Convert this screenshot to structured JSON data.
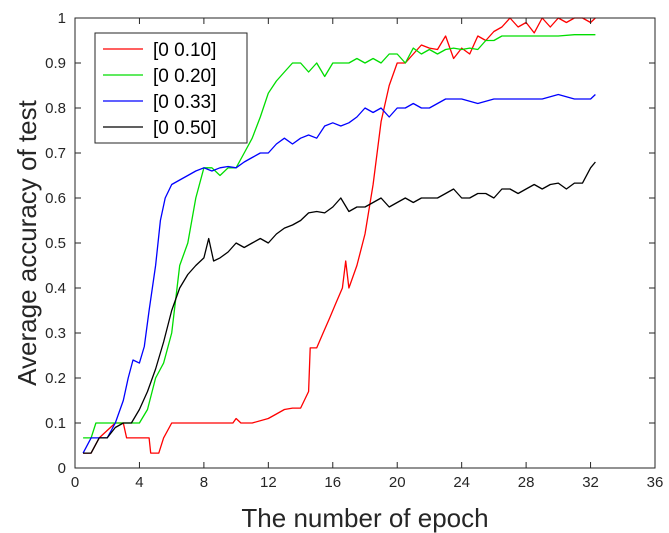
{
  "chart_data": {
    "type": "line",
    "title": "",
    "xlabel": "The number of epoch",
    "ylabel": "Average accuracy of test",
    "xlim": [
      0,
      36
    ],
    "ylim": [
      0,
      1
    ],
    "xticks": [
      "0",
      "4",
      "8",
      "12",
      "16",
      "20",
      "24",
      "28",
      "32",
      "36"
    ],
    "yticks": [
      "0",
      "0.1",
      "0.2",
      "0.3",
      "0.4",
      "0.5",
      "0.6",
      "0.7",
      "0.8",
      "0.9",
      "1"
    ],
    "grid": false,
    "legend_position": "top-left",
    "series": [
      {
        "name": "[0 0.10]",
        "color": "#ff0000",
        "points": [
          [
            0.5,
            0.033
          ],
          [
            1.0,
            0.033
          ],
          [
            1.5,
            0.067
          ],
          [
            2.5,
            0.1
          ],
          [
            3.0,
            0.1
          ],
          [
            3.2,
            0.067
          ],
          [
            4.0,
            0.067
          ],
          [
            4.6,
            0.067
          ],
          [
            4.7,
            0.033
          ],
          [
            5.2,
            0.033
          ],
          [
            5.5,
            0.067
          ],
          [
            6.0,
            0.1
          ],
          [
            7.0,
            0.1
          ],
          [
            8.0,
            0.1
          ],
          [
            9.0,
            0.1
          ],
          [
            9.8,
            0.1
          ],
          [
            10.0,
            0.11
          ],
          [
            10.3,
            0.1
          ],
          [
            11.0,
            0.1
          ],
          [
            12.0,
            0.11
          ],
          [
            12.5,
            0.12
          ],
          [
            13.0,
            0.13
          ],
          [
            13.5,
            0.133
          ],
          [
            14.0,
            0.133
          ],
          [
            14.5,
            0.17
          ],
          [
            14.6,
            0.267
          ],
          [
            15.0,
            0.267
          ],
          [
            15.4,
            0.3
          ],
          [
            15.8,
            0.333
          ],
          [
            16.2,
            0.367
          ],
          [
            16.6,
            0.4
          ],
          [
            16.8,
            0.46
          ],
          [
            17.0,
            0.4
          ],
          [
            17.5,
            0.45
          ],
          [
            18.0,
            0.52
          ],
          [
            18.5,
            0.63
          ],
          [
            19.0,
            0.77
          ],
          [
            19.5,
            0.85
          ],
          [
            20.0,
            0.9
          ],
          [
            20.5,
            0.9
          ],
          [
            21.0,
            0.92
          ],
          [
            21.5,
            0.94
          ],
          [
            22.0,
            0.933
          ],
          [
            22.5,
            0.93
          ],
          [
            23.0,
            0.96
          ],
          [
            23.5,
            0.91
          ],
          [
            24.0,
            0.933
          ],
          [
            24.5,
            0.92
          ],
          [
            25.0,
            0.96
          ],
          [
            25.5,
            0.95
          ],
          [
            26.0,
            0.97
          ],
          [
            26.5,
            0.98
          ],
          [
            27.0,
            1.0
          ],
          [
            27.5,
            0.98
          ],
          [
            28.0,
            0.99
          ],
          [
            28.5,
            0.967
          ],
          [
            29.0,
            1.0
          ],
          [
            29.5,
            0.98
          ],
          [
            30.0,
            1.0
          ],
          [
            30.5,
            0.99
          ],
          [
            31.0,
            1.0
          ],
          [
            31.5,
            1.0
          ],
          [
            32.0,
            0.99
          ],
          [
            32.3,
            1.0
          ]
        ]
      },
      {
        "name": "[0 0.20]",
        "color": "#00dd00",
        "points": [
          [
            0.5,
            0.067
          ],
          [
            1.0,
            0.067
          ],
          [
            1.3,
            0.1
          ],
          [
            2.0,
            0.1
          ],
          [
            3.0,
            0.1
          ],
          [
            3.5,
            0.1
          ],
          [
            4.0,
            0.1
          ],
          [
            4.5,
            0.13
          ],
          [
            5.0,
            0.2
          ],
          [
            5.5,
            0.233
          ],
          [
            6.0,
            0.3
          ],
          [
            6.5,
            0.45
          ],
          [
            7.0,
            0.5
          ],
          [
            7.5,
            0.6
          ],
          [
            8.0,
            0.667
          ],
          [
            8.5,
            0.667
          ],
          [
            9.0,
            0.65
          ],
          [
            9.5,
            0.667
          ],
          [
            10.0,
            0.667
          ],
          [
            10.5,
            0.7
          ],
          [
            11.0,
            0.733
          ],
          [
            11.5,
            0.78
          ],
          [
            12.0,
            0.833
          ],
          [
            12.5,
            0.86
          ],
          [
            13.0,
            0.88
          ],
          [
            13.5,
            0.9
          ],
          [
            14.0,
            0.9
          ],
          [
            14.5,
            0.88
          ],
          [
            15.0,
            0.9
          ],
          [
            15.5,
            0.87
          ],
          [
            16.0,
            0.9
          ],
          [
            16.5,
            0.9
          ],
          [
            17.0,
            0.9
          ],
          [
            17.5,
            0.91
          ],
          [
            18.0,
            0.9
          ],
          [
            18.5,
            0.91
          ],
          [
            19.0,
            0.9
          ],
          [
            19.5,
            0.92
          ],
          [
            20.0,
            0.92
          ],
          [
            20.5,
            0.9
          ],
          [
            21.0,
            0.933
          ],
          [
            21.5,
            0.92
          ],
          [
            22.0,
            0.93
          ],
          [
            22.5,
            0.92
          ],
          [
            23.0,
            0.93
          ],
          [
            23.5,
            0.933
          ],
          [
            24.0,
            0.93
          ],
          [
            24.5,
            0.933
          ],
          [
            25.0,
            0.93
          ],
          [
            25.5,
            0.95
          ],
          [
            26.0,
            0.95
          ],
          [
            26.5,
            0.96
          ],
          [
            27.0,
            0.96
          ],
          [
            28.0,
            0.96
          ],
          [
            29.0,
            0.96
          ],
          [
            30.0,
            0.96
          ],
          [
            31.0,
            0.963
          ],
          [
            32.0,
            0.963
          ],
          [
            32.3,
            0.963
          ]
        ]
      },
      {
        "name": "[0 0.33]",
        "color": "#0000ff",
        "points": [
          [
            0.5,
            0.033
          ],
          [
            1.0,
            0.067
          ],
          [
            1.5,
            0.067
          ],
          [
            2.0,
            0.067
          ],
          [
            2.5,
            0.1
          ],
          [
            3.0,
            0.15
          ],
          [
            3.3,
            0.2
          ],
          [
            3.6,
            0.24
          ],
          [
            4.0,
            0.233
          ],
          [
            4.3,
            0.27
          ],
          [
            4.6,
            0.35
          ],
          [
            5.0,
            0.45
          ],
          [
            5.3,
            0.55
          ],
          [
            5.6,
            0.6
          ],
          [
            6.0,
            0.63
          ],
          [
            6.5,
            0.64
          ],
          [
            7.0,
            0.65
          ],
          [
            7.5,
            0.66
          ],
          [
            8.0,
            0.667
          ],
          [
            8.5,
            0.66
          ],
          [
            9.0,
            0.667
          ],
          [
            9.5,
            0.67
          ],
          [
            10.0,
            0.667
          ],
          [
            10.5,
            0.68
          ],
          [
            11.0,
            0.69
          ],
          [
            11.5,
            0.7
          ],
          [
            12.0,
            0.7
          ],
          [
            12.5,
            0.72
          ],
          [
            13.0,
            0.733
          ],
          [
            13.5,
            0.72
          ],
          [
            14.0,
            0.733
          ],
          [
            14.5,
            0.74
          ],
          [
            15.0,
            0.733
          ],
          [
            15.5,
            0.76
          ],
          [
            16.0,
            0.767
          ],
          [
            16.5,
            0.76
          ],
          [
            17.0,
            0.767
          ],
          [
            17.5,
            0.78
          ],
          [
            18.0,
            0.8
          ],
          [
            18.5,
            0.79
          ],
          [
            19.0,
            0.8
          ],
          [
            19.5,
            0.78
          ],
          [
            20.0,
            0.8
          ],
          [
            20.5,
            0.8
          ],
          [
            21.0,
            0.81
          ],
          [
            21.5,
            0.8
          ],
          [
            22.0,
            0.8
          ],
          [
            22.5,
            0.81
          ],
          [
            23.0,
            0.82
          ],
          [
            24.0,
            0.82
          ],
          [
            25.0,
            0.81
          ],
          [
            26.0,
            0.82
          ],
          [
            27.0,
            0.82
          ],
          [
            28.0,
            0.82
          ],
          [
            29.0,
            0.82
          ],
          [
            30.0,
            0.83
          ],
          [
            31.0,
            0.82
          ],
          [
            31.5,
            0.82
          ],
          [
            32.0,
            0.82
          ],
          [
            32.3,
            0.83
          ]
        ]
      },
      {
        "name": "[0 0.50]",
        "color": "#000000",
        "points": [
          [
            0.5,
            0.033
          ],
          [
            1.0,
            0.033
          ],
          [
            1.5,
            0.067
          ],
          [
            2.0,
            0.067
          ],
          [
            2.5,
            0.09
          ],
          [
            3.0,
            0.1
          ],
          [
            3.5,
            0.1
          ],
          [
            4.0,
            0.13
          ],
          [
            4.5,
            0.17
          ],
          [
            5.0,
            0.22
          ],
          [
            5.5,
            0.28
          ],
          [
            6.0,
            0.35
          ],
          [
            6.5,
            0.4
          ],
          [
            7.0,
            0.43
          ],
          [
            7.5,
            0.45
          ],
          [
            8.0,
            0.467
          ],
          [
            8.3,
            0.51
          ],
          [
            8.6,
            0.46
          ],
          [
            9.0,
            0.467
          ],
          [
            9.5,
            0.48
          ],
          [
            10.0,
            0.5
          ],
          [
            10.5,
            0.49
          ],
          [
            11.0,
            0.5
          ],
          [
            11.5,
            0.51
          ],
          [
            12.0,
            0.5
          ],
          [
            12.5,
            0.52
          ],
          [
            13.0,
            0.533
          ],
          [
            13.5,
            0.54
          ],
          [
            14.0,
            0.55
          ],
          [
            14.5,
            0.567
          ],
          [
            15.0,
            0.57
          ],
          [
            15.5,
            0.567
          ],
          [
            16.0,
            0.58
          ],
          [
            16.5,
            0.6
          ],
          [
            17.0,
            0.57
          ],
          [
            17.5,
            0.58
          ],
          [
            18.0,
            0.58
          ],
          [
            18.5,
            0.59
          ],
          [
            19.0,
            0.6
          ],
          [
            19.5,
            0.58
          ],
          [
            20.0,
            0.59
          ],
          [
            20.5,
            0.6
          ],
          [
            21.0,
            0.59
          ],
          [
            21.5,
            0.6
          ],
          [
            22.0,
            0.6
          ],
          [
            22.5,
            0.6
          ],
          [
            23.0,
            0.61
          ],
          [
            23.5,
            0.62
          ],
          [
            24.0,
            0.6
          ],
          [
            24.5,
            0.6
          ],
          [
            25.0,
            0.61
          ],
          [
            25.5,
            0.61
          ],
          [
            26.0,
            0.6
          ],
          [
            26.5,
            0.62
          ],
          [
            27.0,
            0.62
          ],
          [
            27.5,
            0.61
          ],
          [
            28.0,
            0.62
          ],
          [
            28.5,
            0.63
          ],
          [
            29.0,
            0.62
          ],
          [
            29.5,
            0.63
          ],
          [
            30.0,
            0.633
          ],
          [
            30.5,
            0.62
          ],
          [
            31.0,
            0.633
          ],
          [
            31.5,
            0.633
          ],
          [
            32.0,
            0.667
          ],
          [
            32.3,
            0.68
          ]
        ]
      }
    ]
  }
}
